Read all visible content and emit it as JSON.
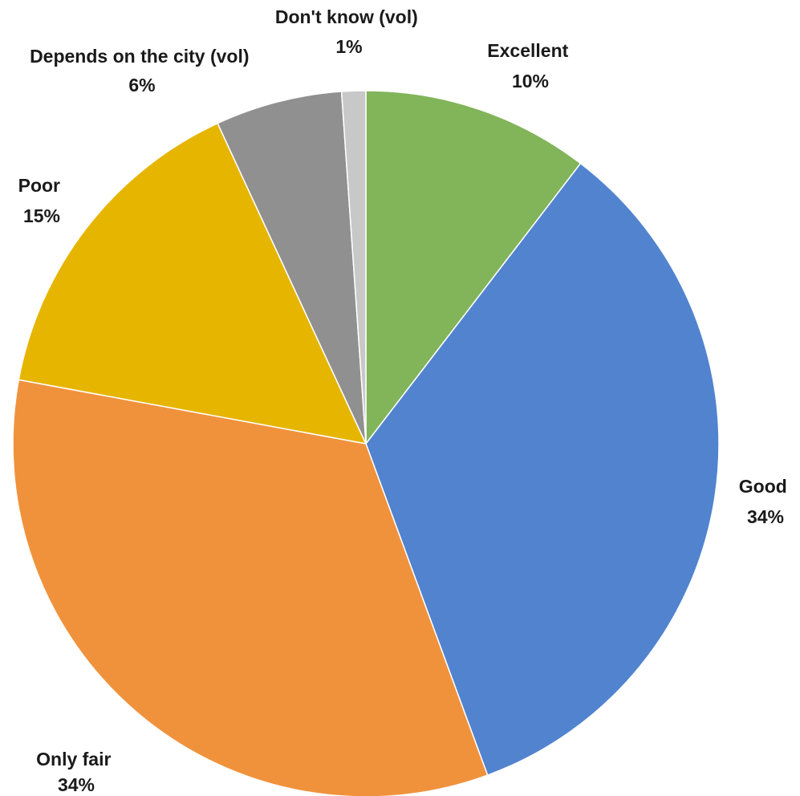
{
  "chart_data": {
    "type": "pie",
    "title": "",
    "slices": [
      {
        "label": "Excellent",
        "value_text": "10%",
        "value": 10.4,
        "color": "#82b45a"
      },
      {
        "label": "Good",
        "value_text": "34%",
        "value": 34.0,
        "color": "#5183cf"
      },
      {
        "label": "Only fair",
        "value_text": "34%",
        "value": 33.5,
        "color": "#f0923c"
      },
      {
        "label": "Poor",
        "value_text": "15%",
        "value": 15.2,
        "color": "#e6b500"
      },
      {
        "label": "Depends on the city (vol)",
        "value_text": "6%",
        "value": 5.8,
        "color": "#909090"
      },
      {
        "label": "Don't know (vol)",
        "value_text": "1%",
        "value": 1.1,
        "color": "#c8c8c8"
      }
    ],
    "start": "12 o'clock",
    "direction": "clockwise",
    "legend": "none",
    "data_labels": "outside"
  }
}
